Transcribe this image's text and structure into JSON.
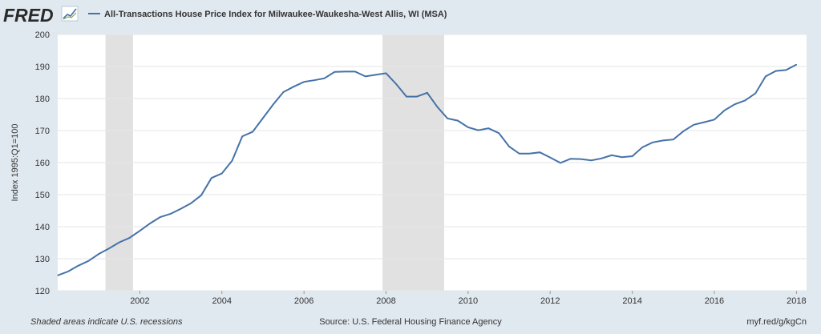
{
  "header": {
    "brand": "FRED",
    "legend_label": "All-Transactions House Price Index for Milwaukee-Waukesha-West Allis, WI (MSA)"
  },
  "footer": {
    "note": "Shaded areas indicate U.S. recessions",
    "source": "Source: U.S. Federal Housing Finance Agency",
    "link": "myf.red/g/kgCn"
  },
  "colors": {
    "background": "#e1e9f0",
    "plot_bg": "#ffffff",
    "line": "#4572a7",
    "recession": "#e1e1e1",
    "grid": "#e6e6e6",
    "brand": "#2a2a2a"
  },
  "chart_data": {
    "type": "line",
    "title": "All-Transactions House Price Index for Milwaukee-Waukesha-West Allis, WI (MSA)",
    "ylabel": "Index 1995:Q1=100",
    "xlabel": "",
    "ylim": [
      120,
      200
    ],
    "yticks": [
      120,
      130,
      140,
      150,
      160,
      170,
      180,
      190,
      200
    ],
    "xlim": [
      "2000-01-01",
      "2018-04-01"
    ],
    "xticks": [
      "2002",
      "2004",
      "2006",
      "2008",
      "2010",
      "2012",
      "2014",
      "2016",
      "2018"
    ],
    "grid": true,
    "legend": "top",
    "recessions": [
      {
        "start": "2001-03-01",
        "end": "2001-11-01"
      },
      {
        "start": "2007-12-01",
        "end": "2009-06-01"
      }
    ],
    "series": [
      {
        "name": "All-Transactions House Price Index for Milwaukee-Waukesha-West Allis, WI (MSA)",
        "x": [
          "2000-01-01",
          "2000-04-01",
          "2000-07-01",
          "2000-10-01",
          "2001-01-01",
          "2001-04-01",
          "2001-07-01",
          "2001-10-01",
          "2002-01-01",
          "2002-04-01",
          "2002-07-01",
          "2002-10-01",
          "2003-01-01",
          "2003-04-01",
          "2003-07-01",
          "2003-10-01",
          "2004-01-01",
          "2004-04-01",
          "2004-07-01",
          "2004-10-01",
          "2005-01-01",
          "2005-04-01",
          "2005-07-01",
          "2005-10-01",
          "2006-01-01",
          "2006-04-01",
          "2006-07-01",
          "2006-10-01",
          "2007-01-01",
          "2007-04-01",
          "2007-07-01",
          "2007-10-01",
          "2008-01-01",
          "2008-04-01",
          "2008-07-01",
          "2008-10-01",
          "2009-01-01",
          "2009-04-01",
          "2009-07-01",
          "2009-10-01",
          "2010-01-01",
          "2010-04-01",
          "2010-07-01",
          "2010-10-01",
          "2011-01-01",
          "2011-04-01",
          "2011-07-01",
          "2011-10-01",
          "2012-01-01",
          "2012-04-01",
          "2012-07-01",
          "2012-10-01",
          "2013-01-01",
          "2013-04-01",
          "2013-07-01",
          "2013-10-01",
          "2014-01-01",
          "2014-04-01",
          "2014-07-01",
          "2014-10-01",
          "2015-01-01",
          "2015-04-01",
          "2015-07-01",
          "2015-10-01",
          "2016-01-01",
          "2016-04-01",
          "2016-07-01",
          "2016-10-01",
          "2017-01-01",
          "2017-04-01",
          "2017-07-01",
          "2017-10-01",
          "2018-01-01"
        ],
        "values": [
          124.8,
          126.0,
          127.8,
          129.3,
          131.5,
          133.2,
          135.1,
          136.5,
          138.7,
          141.0,
          143.0,
          144.0,
          145.6,
          147.3,
          149.8,
          155.2,
          156.6,
          160.6,
          168.2,
          169.6,
          173.9,
          178.1,
          182.0,
          183.7,
          185.2,
          185.7,
          186.3,
          188.3,
          188.4,
          188.4,
          186.9,
          187.4,
          187.9,
          184.5,
          180.6,
          180.6,
          181.8,
          177.4,
          173.8,
          173.1,
          171.0,
          170.1,
          170.7,
          169.2,
          165.0,
          162.8,
          162.8,
          163.2,
          161.6,
          159.9,
          161.2,
          161.1,
          160.7,
          161.3,
          162.3,
          161.7,
          162.0,
          164.8,
          166.3,
          166.9,
          167.2,
          169.8,
          171.8,
          172.6,
          173.4,
          176.3,
          178.2,
          179.4,
          181.6,
          186.9,
          188.6,
          188.9,
          190.6
        ]
      }
    ]
  }
}
